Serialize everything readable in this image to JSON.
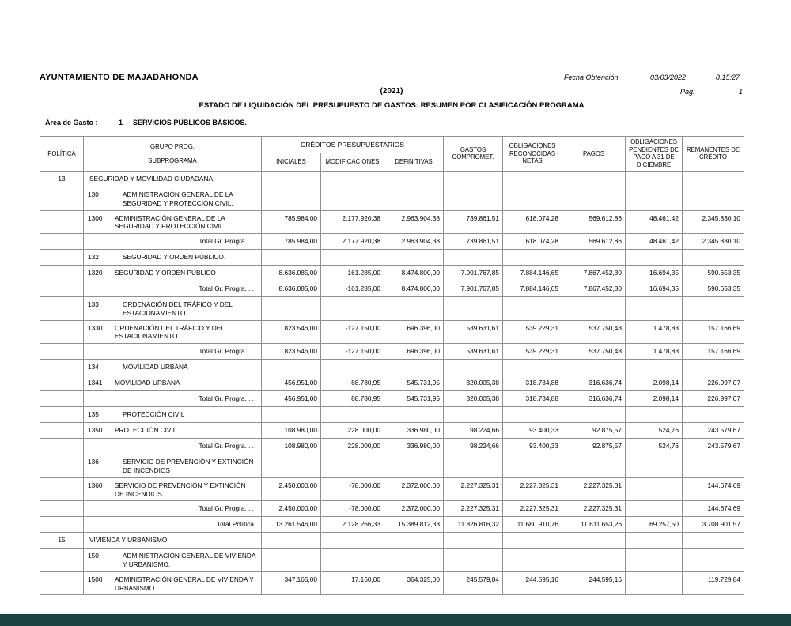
{
  "colors": {
    "footer_bar": "#1d4242",
    "border": "#8f8f8f",
    "text": "#000000"
  },
  "header": {
    "entity": "AYUNTAMIENTO DE MAJADAHONDA",
    "fecha_label": "Fecha Obtención",
    "fecha": "03/03/2022",
    "hora": "8:15:27",
    "year": "(2021)",
    "pag_label": "Pág.",
    "pag": "1",
    "title": "ESTADO DE LIQUIDACIÓN DEL PRESUPUESTO DE GASTOS: RESUMEN POR CLASIFICACIÓN PROGRAMA",
    "area_label": "Área de Gasto :",
    "area_num": "1",
    "area_name": "SERVICIOS PÚBLICOS BÁSICOS."
  },
  "table": {
    "columns": {
      "politica": "POLÍTICA",
      "grupo_prog": "GRUPO PROG.",
      "subprograma": "SUBPROGRAMA",
      "creditos": "CRÉDITOS PRESUPUESTARIOS",
      "iniciales": "INICIALES",
      "modificaciones": "MODIFICACIONES",
      "definitivas": "DEFINITIVAS",
      "gastos": "GASTOS COMPROMET.",
      "obligaciones": "OBLIGACIONES RECONOCIDAS NETAS",
      "pagos": "PAGOS",
      "pendientes": "OBLIGACIONES PENDIENTES DE PAGO A 31 DE DICIEMBRE",
      "remanentes": "REMANENTES DE CRÉDITO"
    },
    "rows": [
      {
        "type": "politica",
        "code": "13",
        "label": "SEGURIDAD Y MOVILIDAD CIUDADANA.",
        "values": [
          "",
          "",
          "",
          "",
          "",
          "",
          "",
          ""
        ]
      },
      {
        "type": "grupo",
        "code": "130",
        "label": "ADMINISTRACIÓN GENERAL DE LA SEGURIDAD Y PROTECCIÓN CIVIL.",
        "values": [
          "",
          "",
          "",
          "",
          "",
          "",
          "",
          ""
        ]
      },
      {
        "type": "sub",
        "code": "1300",
        "label": "ADMINISTRACIÓN GENERAL DE LA SEGURIDAD Y PROTECCIÓN CIVIL",
        "values": [
          "785.984,00",
          "2.177.920,38",
          "2.963.904,38",
          "739.861,51",
          "618.074,28",
          "569.612,86",
          "48.461,42",
          "2.345.830,10"
        ]
      },
      {
        "type": "total_grupo",
        "code": "",
        "label": "Total Gr. Progra. . .",
        "values": [
          "785.984,00",
          "2.177.920,38",
          "2.963.904,38",
          "739.861,51",
          "618.074,28",
          "569.612,86",
          "48.461,42",
          "2.345.830,10"
        ]
      },
      {
        "type": "grupo",
        "code": "132",
        "label": "SEGURIDAD Y ORDEN PÚBLICO.",
        "values": [
          "",
          "",
          "",
          "",
          "",
          "",
          "",
          ""
        ]
      },
      {
        "type": "sub",
        "code": "1320",
        "label": "SEGURIDAD Y ORDEN PÚBLICO",
        "values": [
          "8.636.085,00",
          "-161.285,00",
          "8.474.800,00",
          "7.901.767,85",
          "7.884.146,65",
          "7.867.452,30",
          "16.694,35",
          "590.653,35"
        ]
      },
      {
        "type": "total_grupo",
        "code": "",
        "label": "Total Gr. Progra. . .",
        "values": [
          "8.636.085,00",
          "-161.285,00",
          "8.474.800,00",
          "7.901.767,85",
          "7.884.146,65",
          "7.867.452,30",
          "16.694,35",
          "590.653,35"
        ]
      },
      {
        "type": "grupo",
        "code": "133",
        "label": "ORDENACIÓN DEL TRÁFICO Y DEL ESTACIONAMIENTO.",
        "values": [
          "",
          "",
          "",
          "",
          "",
          "",
          "",
          ""
        ]
      },
      {
        "type": "sub",
        "code": "1330",
        "label": "ORDENACIÓN DEL TRÁFICO Y DEL ESTACIONAMIENTO",
        "values": [
          "823.546,00",
          "-127.150,00",
          "696.396,00",
          "539.631,61",
          "539.229,31",
          "537.750,48",
          "1.478,83",
          "157.166,69"
        ]
      },
      {
        "type": "total_grupo",
        "code": "",
        "label": "Total Gr. Progra. . .",
        "values": [
          "823.546,00",
          "-127.150,00",
          "696.396,00",
          "539.631,61",
          "539.229,31",
          "537.750,48",
          "1.478,83",
          "157.166,69"
        ]
      },
      {
        "type": "grupo",
        "code": "134",
        "label": "MOVILIDAD URBANA",
        "values": [
          "",
          "",
          "",
          "",
          "",
          "",
          "",
          ""
        ]
      },
      {
        "type": "sub",
        "code": "1341",
        "label": "MOVILIDAD URBANA",
        "values": [
          "456.951,00",
          "88.780,95",
          "545.731,95",
          "320.005,38",
          "318.734,88",
          "316.636,74",
          "2.098,14",
          "226.997,07"
        ]
      },
      {
        "type": "total_grupo",
        "code": "",
        "label": "Total Gr. Progra. . .",
        "values": [
          "456.951,00",
          "88.780,95",
          "545.731,95",
          "320.005,38",
          "318.734,88",
          "316.636,74",
          "2.098,14",
          "226.997,07"
        ]
      },
      {
        "type": "grupo",
        "code": "135",
        "label": "PROTECCIÓN CIVIL",
        "values": [
          "",
          "",
          "",
          "",
          "",
          "",
          "",
          ""
        ]
      },
      {
        "type": "sub",
        "code": "1350",
        "label": "PROTECCIÓN CIVIL",
        "values": [
          "108.980,00",
          "228.000,00",
          "336.980,00",
          "98.224,66",
          "93.400,33",
          "92.875,57",
          "524,76",
          "243.579,67"
        ]
      },
      {
        "type": "total_grupo",
        "code": "",
        "label": "Total Gr. Progra. . .",
        "values": [
          "108.980,00",
          "228.000,00",
          "336.980,00",
          "98.224,66",
          "93.400,33",
          "92.875,57",
          "524,76",
          "243.579,67"
        ]
      },
      {
        "type": "grupo",
        "code": "136",
        "label": "SERVICIO DE PREVENCIÓN Y EXTINCIÓN DE INCENDIOS",
        "values": [
          "",
          "",
          "",
          "",
          "",
          "",
          "",
          ""
        ]
      },
      {
        "type": "sub",
        "code": "1360",
        "label": "SERVICIO DE PREVENCIÓN Y EXTINCIÓN DE INCENDIOS",
        "values": [
          "2.450.000,00",
          "-78.000,00",
          "2.372.000,00",
          "2.227.325,31",
          "2.227.325,31",
          "2.227.325,31",
          "",
          "144.674,69"
        ]
      },
      {
        "type": "total_grupo",
        "code": "",
        "label": "Total Gr. Progra. . .",
        "values": [
          "2.450.000,00",
          "-78.000,00",
          "2.372.000,00",
          "2.227.325,31",
          "2.227.325,31",
          "2.227.325,31",
          "",
          "144.674,69"
        ]
      },
      {
        "type": "total_politica",
        "code": "",
        "label": "Total Política",
        "values": [
          "13.261.546,00",
          "2.128.266,33",
          "15.389.812,33",
          "11.826.816,32",
          "11.680.910,76",
          "11.611.653,26",
          "69.257,50",
          "3.708.901,57"
        ]
      },
      {
        "type": "politica",
        "code": "15",
        "label": "VIVIENDA Y URBANISMO.",
        "values": [
          "",
          "",
          "",
          "",
          "",
          "",
          "",
          ""
        ]
      },
      {
        "type": "grupo",
        "code": "150",
        "label": "ADMINISTRACIÓN GENERAL DE VIVIENDA Y URBANISMO.",
        "values": [
          "",
          "",
          "",
          "",
          "",
          "",
          "",
          ""
        ]
      },
      {
        "type": "sub",
        "code": "1500",
        "label": "ADMINISTRACIÓN GENERAL DE VIVIENDA Y URBANISMO",
        "values": [
          "347.165,00",
          "17.160,00",
          "364.325,00",
          "245.579,84",
          "244.595,16",
          "244.595,16",
          "",
          "119.729,84"
        ]
      }
    ]
  }
}
